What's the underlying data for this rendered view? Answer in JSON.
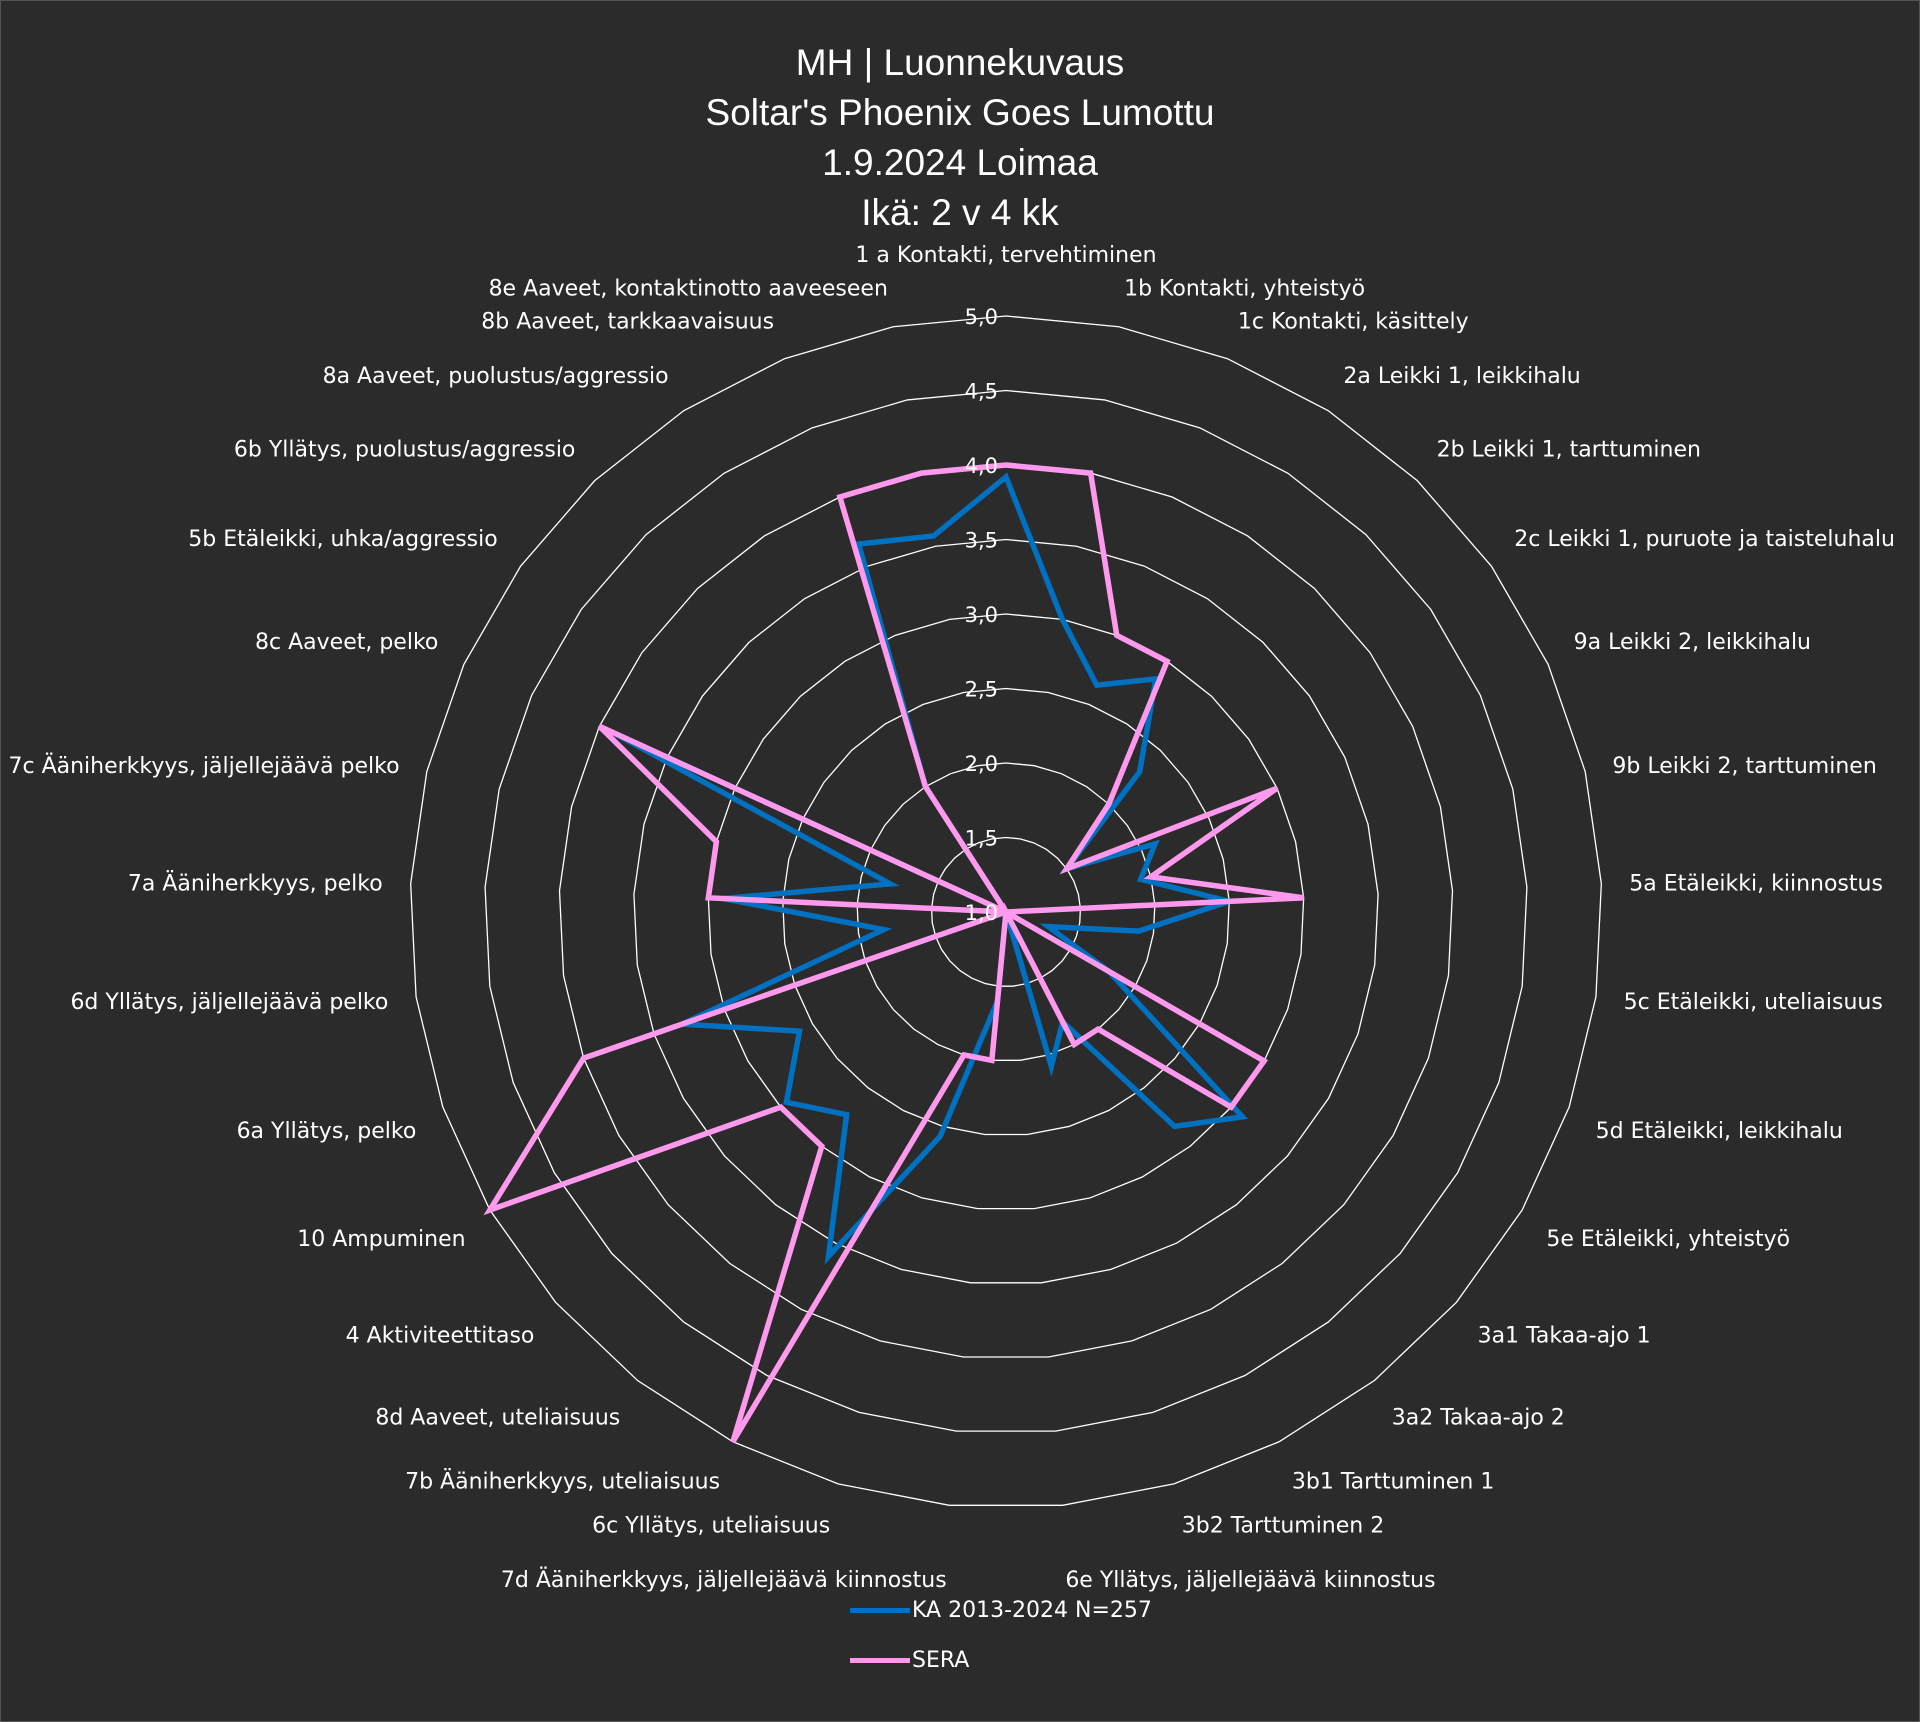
{
  "chart_data": {
    "type": "radar",
    "title": [
      "MH | Luonnekuvaus",
      "Soltar's Phoenix Goes Lumottu",
      "1.9.2024 Loimaa",
      "Ikä: 2 v 4 kk"
    ],
    "categories": [
      "1 a Kontakti, tervehtiminen",
      "1b Kontakti, yhteistyö",
      "1c Kontakti, käsittely",
      "2a Leikki 1, leikkihalu",
      "2b Leikki 1, tarttuminen",
      "2c Leikki 1, puruote ja taisteluhalu",
      "9a Leikki 2, leikkihalu",
      "9b Leikki 2, tarttuminen",
      "5a Etäleikki, kiinnostus",
      "5c Etäleikki, uteliaisuus",
      "5d Etäleikki, leikkihalu",
      "5e Etäleikki, yhteistyö",
      "3a1 Takaa-ajo 1",
      "3a2 Takaa-ajo 2",
      "3b1 Tarttuminen 1",
      "3b2 Tarttuminen 2",
      "6e Yllätys, jäljellejäävä kiinnostus",
      "7d Ääniherkkyys, jäljellejäävä kiinnostus",
      "6c Yllätys, uteliaisuus",
      "7b Ääniherkkyys, uteliaisuus",
      "8d Aaveet, uteliaisuus",
      "4 Aktiviteettitaso",
      "10 Ampuminen",
      "6a Yllätys, pelko",
      "6d Yllätys, jäljellejäävä pelko",
      "7a Ääniherkkyys, pelko",
      "7c Ääniherkkyys, jäljellejäävä pelko",
      "8c Aaveet, pelko",
      "5b Etäleikki, uhka/aggressio",
      "6b Yllätys, puolustus/aggressio",
      "8a Aaveet, puolustus/aggressio",
      "8b Aaveet, tarkkaavaisuus",
      "8e Aaveet, kontaktinotto aaveeseen"
    ],
    "series": [
      {
        "name": "KA 2013-2024 N=257",
        "color": "#0070c0",
        "values": [
          3.92,
          3.0,
          2.64,
          2.86,
          2.3,
          1.5,
          2.1,
          1.93,
          2.5,
          1.9,
          1.3,
          1.8,
          3.1,
          2.83,
          1.83,
          2.08,
          1.0,
          1.6,
          2.57,
          3.6,
          2.73,
          2.95,
          2.6,
          3.3,
          1.83,
          2.9,
          1.8,
          3.9,
          1.0,
          1.0,
          2.0,
          3.66,
          3.57
        ]
      },
      {
        "name": "SERA",
        "color": "#ff99ee",
        "values": [
          4,
          4,
          3,
          3,
          2,
          1.5,
          3,
          2,
          3,
          1,
          1,
          3,
          3,
          2,
          2,
          1,
          1,
          2,
          2,
          5,
          3,
          3,
          5,
          4,
          1,
          3,
          3,
          4,
          1,
          1,
          2,
          4,
          4
        ]
      }
    ],
    "rmin": 1.0,
    "rmax": 5.0,
    "ticks": [
      "1,0",
      "1,5",
      "2,0",
      "2,5",
      "3,0",
      "3,5",
      "4,0",
      "4,5",
      "5,0"
    ],
    "grid": true,
    "legend": "bottom",
    "background": "#2b2b2b"
  }
}
